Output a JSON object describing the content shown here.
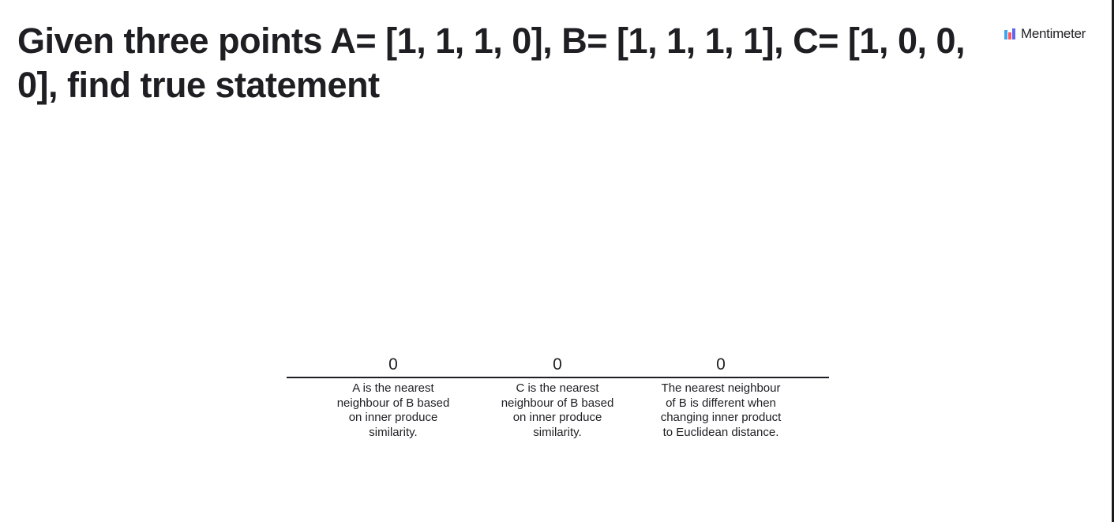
{
  "question": {
    "title": "Given three points A= [1, 1, 1, 0], B= [1, 1, 1, 1], C= [1, 0, 0, 0], find true statement"
  },
  "brand": {
    "name": "Mentimeter",
    "logo_icon": "mentimeter-logo-icon",
    "colors": [
      "#FF5A5F",
      "#5F66F2",
      "#3FA6F0"
    ]
  },
  "chart_data": {
    "type": "bar",
    "categories": [
      "A is the nearest neighbour of B based on inner produce similarity.",
      "C is the nearest neighbour of B based on inner produce similarity.",
      "The nearest neighbour of B is different when changing inner product to Euclidean distance."
    ],
    "values": [
      0,
      0,
      0
    ],
    "value_labels": [
      "0",
      "0",
      "0"
    ],
    "title": "",
    "xlabel": "",
    "ylabel": "",
    "grid": false
  }
}
